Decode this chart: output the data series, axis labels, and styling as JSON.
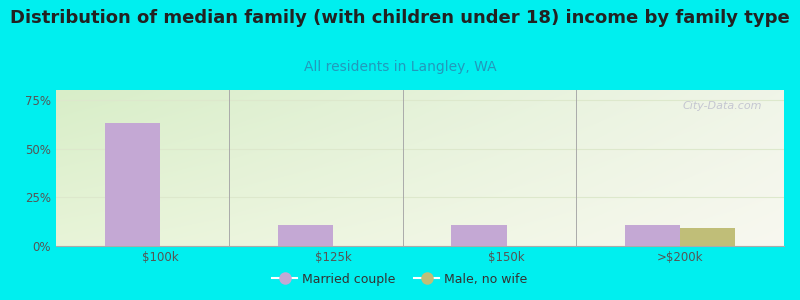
{
  "title": "Distribution of median family (with children under 18) income by family type",
  "subtitle": "All residents in Langley, WA",
  "categories": [
    "$100k",
    "$125k",
    "$150k",
    ">$200k"
  ],
  "married_couple": [
    63,
    11,
    11,
    11
  ],
  "male_no_wife": [
    0,
    0,
    0,
    9
  ],
  "bar_color_married": "#c4a8d4",
  "bar_color_male": "#c0be78",
  "background_outer": "#00efef",
  "yticks": [
    0,
    25,
    50,
    75
  ],
  "ylim": [
    0,
    80
  ],
  "watermark": "City-Data.com",
  "legend_married": "Married couple",
  "legend_male": "Male, no wife",
  "title_fontsize": 13,
  "subtitle_fontsize": 10,
  "subtitle_color": "#2299bb",
  "axis_tick_color": "#555555",
  "grid_color": "#dde8cc"
}
